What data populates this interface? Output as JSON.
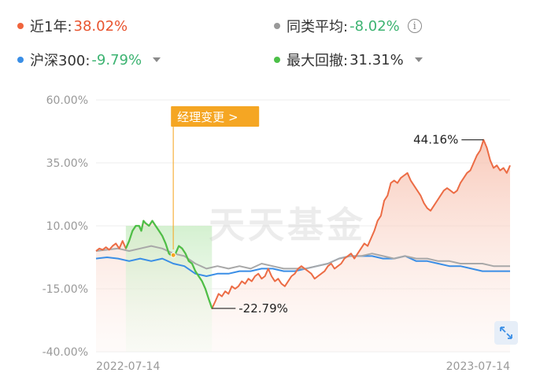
{
  "legend": {
    "fund": {
      "label": "近1年:",
      "value": "38.02%",
      "dot_color": "#f0643c",
      "value_color": "#e8542f"
    },
    "peer_avg": {
      "label": "同类平均:",
      "value": "-8.02%",
      "dot_color": "#999999",
      "value_color": "#3cb371"
    },
    "hs300": {
      "label": "沪深300:",
      "value": "-9.79%",
      "dot_color": "#3a8ee6",
      "value_color": "#3cb371"
    },
    "max_drawdown": {
      "label": "最大回撤:",
      "value": "31.31%",
      "dot_color": "#4cc048",
      "value_color": "#333333"
    }
  },
  "watermark": "天天基金",
  "chart_data": {
    "type": "line",
    "y_ticks": [
      "60.00%",
      "35.00%",
      "10.00%",
      "-15.00%",
      "-40.00%"
    ],
    "ylim": [
      -40,
      60
    ],
    "x_tick_labels": [
      "2022-07-14",
      "2023-07-14"
    ],
    "grid": true,
    "annotations": {
      "manager_change": "经理变更 >",
      "max_label": "44.16%",
      "min_label": "-22.79%"
    },
    "series": [
      {
        "key": "fund",
        "color": "#ec6c45",
        "values": [
          [
            0,
            0
          ],
          [
            3,
            1
          ],
          [
            6,
            0.5
          ],
          [
            9,
            1.5
          ],
          [
            12,
            0.5
          ],
          [
            15,
            2
          ],
          [
            18,
            3
          ],
          [
            21,
            1
          ],
          [
            24,
            4
          ],
          [
            27,
            1
          ],
          [
            30,
            4
          ],
          [
            33,
            8
          ],
          [
            36,
            10
          ],
          [
            39,
            10
          ],
          [
            41,
            8
          ],
          [
            43,
            12
          ],
          [
            45,
            11
          ],
          [
            48,
            10
          ],
          [
            51,
            12
          ],
          [
            54,
            10
          ],
          [
            57,
            8
          ],
          [
            60,
            6
          ],
          [
            63,
            3
          ],
          [
            66,
            -1
          ],
          [
            69,
            -2
          ],
          [
            72,
            -1
          ],
          [
            75,
            2
          ],
          [
            78,
            1
          ],
          [
            81,
            -1
          ],
          [
            84,
            -4
          ],
          [
            87,
            -5
          ],
          [
            90,
            -8
          ],
          [
            93,
            -10
          ],
          [
            96,
            -12
          ],
          [
            99,
            -15
          ],
          [
            102,
            -19
          ],
          [
            105,
            -22.79
          ],
          [
            108,
            -20
          ],
          [
            111,
            -17
          ],
          [
            114,
            -18
          ],
          [
            117,
            -16
          ],
          [
            120,
            -17
          ],
          [
            123,
            -14
          ],
          [
            126,
            -15
          ],
          [
            129,
            -14
          ],
          [
            132,
            -12
          ],
          [
            135,
            -13
          ],
          [
            138,
            -11
          ],
          [
            141,
            -12
          ],
          [
            144,
            -10
          ],
          [
            147,
            -9
          ],
          [
            150,
            -11
          ],
          [
            153,
            -10
          ],
          [
            156,
            -7
          ],
          [
            159,
            -10
          ],
          [
            162,
            -12
          ],
          [
            165,
            -11
          ],
          [
            168,
            -13
          ],
          [
            171,
            -14
          ],
          [
            174,
            -12
          ],
          [
            177,
            -10
          ],
          [
            180,
            -9
          ],
          [
            183,
            -7
          ],
          [
            186,
            -6
          ],
          [
            189,
            -7
          ],
          [
            192,
            -8
          ],
          [
            195,
            -9
          ],
          [
            198,
            -11
          ],
          [
            201,
            -10
          ],
          [
            204,
            -9
          ],
          [
            207,
            -8
          ],
          [
            210,
            -6
          ],
          [
            213,
            -5
          ],
          [
            216,
            -7
          ],
          [
            219,
            -6
          ],
          [
            222,
            -5
          ],
          [
            225,
            -3
          ],
          [
            228,
            -2
          ],
          [
            231,
            -1
          ],
          [
            234,
            -3
          ],
          [
            237,
            -1
          ],
          [
            240,
            1
          ],
          [
            243,
            3
          ],
          [
            246,
            2
          ],
          [
            249,
            5
          ],
          [
            252,
            8
          ],
          [
            255,
            12
          ],
          [
            258,
            14
          ],
          [
            261,
            20
          ],
          [
            264,
            22
          ],
          [
            267,
            27
          ],
          [
            270,
            28
          ],
          [
            273,
            27
          ],
          [
            276,
            29
          ],
          [
            279,
            30
          ],
          [
            282,
            31
          ],
          [
            285,
            28
          ],
          [
            288,
            26
          ],
          [
            291,
            24
          ],
          [
            294,
            22
          ],
          [
            297,
            19
          ],
          [
            300,
            17
          ],
          [
            303,
            16
          ],
          [
            306,
            18
          ],
          [
            309,
            20
          ],
          [
            312,
            22
          ],
          [
            315,
            24
          ],
          [
            318,
            25
          ],
          [
            321,
            24
          ],
          [
            324,
            23
          ],
          [
            327,
            24
          ],
          [
            330,
            27
          ],
          [
            333,
            29
          ],
          [
            336,
            31
          ],
          [
            339,
            32
          ],
          [
            342,
            35
          ],
          [
            345,
            38
          ],
          [
            348,
            40
          ],
          [
            351,
            44.16
          ],
          [
            354,
            41
          ],
          [
            357,
            36
          ],
          [
            360,
            33
          ],
          [
            363,
            34
          ],
          [
            366,
            32
          ],
          [
            369,
            33
          ],
          [
            372,
            31
          ],
          [
            375,
            34
          ]
        ]
      },
      {
        "key": "peer_avg",
        "color": "#a8a8a8",
        "values": [
          [
            0,
            0
          ],
          [
            10,
            0.5
          ],
          [
            20,
            1
          ],
          [
            30,
            0
          ],
          [
            40,
            1
          ],
          [
            50,
            2
          ],
          [
            60,
            1
          ],
          [
            70,
            -1
          ],
          [
            80,
            -2
          ],
          [
            90,
            -5
          ],
          [
            100,
            -7
          ],
          [
            110,
            -6
          ],
          [
            120,
            -7
          ],
          [
            130,
            -6
          ],
          [
            140,
            -7
          ],
          [
            150,
            -5
          ],
          [
            160,
            -6
          ],
          [
            170,
            -7
          ],
          [
            180,
            -7
          ],
          [
            190,
            -7
          ],
          [
            200,
            -6
          ],
          [
            210,
            -5
          ],
          [
            220,
            -3
          ],
          [
            230,
            -2
          ],
          [
            240,
            -2
          ],
          [
            250,
            -1
          ],
          [
            260,
            -2
          ],
          [
            270,
            -3
          ],
          [
            280,
            -2
          ],
          [
            290,
            -3
          ],
          [
            300,
            -3
          ],
          [
            310,
            -4
          ],
          [
            320,
            -4
          ],
          [
            330,
            -5
          ],
          [
            340,
            -5
          ],
          [
            350,
            -5
          ],
          [
            360,
            -6
          ],
          [
            370,
            -6
          ],
          [
            375,
            -6
          ]
        ]
      },
      {
        "key": "hs300",
        "color": "#3a8ee6",
        "values": [
          [
            0,
            -3
          ],
          [
            10,
            -2.5
          ],
          [
            20,
            -3
          ],
          [
            30,
            -4
          ],
          [
            40,
            -3
          ],
          [
            50,
            -4
          ],
          [
            60,
            -3
          ],
          [
            70,
            -5
          ],
          [
            80,
            -6
          ],
          [
            90,
            -9
          ],
          [
            100,
            -10
          ],
          [
            110,
            -9
          ],
          [
            120,
            -9
          ],
          [
            130,
            -8
          ],
          [
            140,
            -8
          ],
          [
            150,
            -7
          ],
          [
            160,
            -7
          ],
          [
            170,
            -8
          ],
          [
            180,
            -8
          ],
          [
            190,
            -7
          ],
          [
            200,
            -6
          ],
          [
            210,
            -5
          ],
          [
            220,
            -3
          ],
          [
            230,
            -2
          ],
          [
            240,
            -2
          ],
          [
            250,
            -2
          ],
          [
            260,
            -3
          ],
          [
            270,
            -3
          ],
          [
            280,
            -2
          ],
          [
            290,
            -4
          ],
          [
            300,
            -4
          ],
          [
            310,
            -5
          ],
          [
            320,
            -6
          ],
          [
            330,
            -6
          ],
          [
            340,
            -7
          ],
          [
            350,
            -8
          ],
          [
            360,
            -8
          ],
          [
            370,
            -8
          ],
          [
            375,
            -8
          ]
        ]
      }
    ],
    "drawdown_range": [
      27,
      105
    ]
  }
}
